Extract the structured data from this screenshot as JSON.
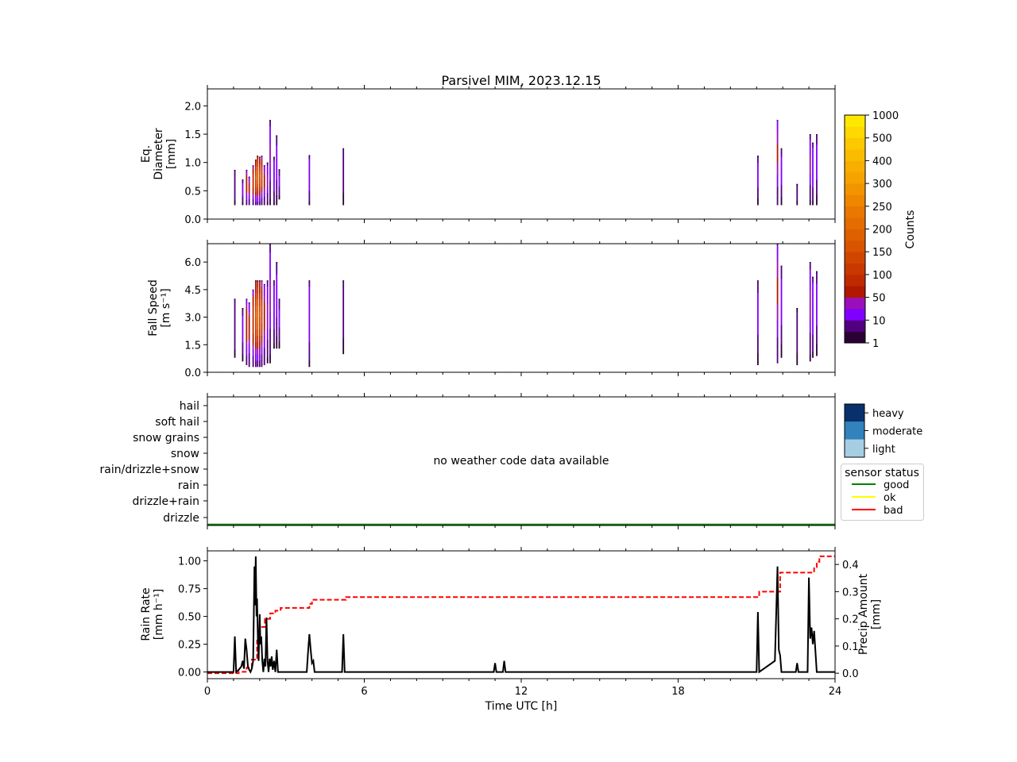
{
  "title": "Parsivel MIM, 2023.12.15",
  "chart_data": [
    {
      "type": "heatmap",
      "id": "diameter",
      "ylabel_lines": [
        "Eq.",
        "Diameter",
        "[mm]"
      ],
      "ylim": [
        0,
        2.3
      ],
      "yticks": [
        "0.0",
        "0.5",
        "1.0",
        "1.5",
        "2.0"
      ],
      "ytick_values": [
        0,
        0.5,
        1.0,
        1.5,
        2.0
      ],
      "xlim": [
        0,
        24
      ],
      "columns": [
        {
          "t": 1.05,
          "lo": 0.25,
          "hi": 0.87,
          "peak": 10
        },
        {
          "t": 1.35,
          "lo": 0.25,
          "hi": 0.7,
          "peak": 20
        },
        {
          "t": 1.5,
          "lo": 0.25,
          "hi": 0.87,
          "peak": 100
        },
        {
          "t": 1.6,
          "lo": 0.25,
          "hi": 0.75,
          "peak": 80
        },
        {
          "t": 1.75,
          "lo": 0.25,
          "hi": 0.95,
          "peak": 150
        },
        {
          "t": 1.85,
          "lo": 0.25,
          "hi": 1.05,
          "peak": 300
        },
        {
          "t": 1.92,
          "lo": 0.25,
          "hi": 1.12,
          "peak": 400
        },
        {
          "t": 2.0,
          "lo": 0.25,
          "hi": 1.1,
          "peak": 300
        },
        {
          "t": 2.08,
          "lo": 0.25,
          "hi": 1.12,
          "peak": 200
        },
        {
          "t": 2.18,
          "lo": 0.25,
          "hi": 0.95,
          "peak": 80
        },
        {
          "t": 2.3,
          "lo": 0.25,
          "hi": 1.0,
          "peak": 40
        },
        {
          "t": 2.4,
          "lo": 0.25,
          "hi": 1.75,
          "peak": 40
        },
        {
          "t": 2.55,
          "lo": 0.25,
          "hi": 1.1,
          "peak": 30
        },
        {
          "t": 2.65,
          "lo": 0.25,
          "hi": 1.48,
          "peak": 20
        },
        {
          "t": 2.75,
          "lo": 0.35,
          "hi": 0.88,
          "peak": 15
        },
        {
          "t": 3.9,
          "lo": 0.25,
          "hi": 1.13,
          "peak": 30
        },
        {
          "t": 5.2,
          "lo": 0.25,
          "hi": 1.25,
          "peak": 8
        },
        {
          "t": 21.05,
          "lo": 0.25,
          "hi": 1.12,
          "peak": 20
        },
        {
          "t": 21.8,
          "lo": 0.25,
          "hi": 1.75,
          "peak": 60
        },
        {
          "t": 21.95,
          "lo": 0.25,
          "hi": 1.25,
          "peak": 20
        },
        {
          "t": 22.55,
          "lo": 0.25,
          "hi": 0.62,
          "peak": 5
        },
        {
          "t": 23.05,
          "lo": 0.25,
          "hi": 1.5,
          "peak": 40
        },
        {
          "t": 23.15,
          "lo": 0.25,
          "hi": 1.35,
          "peak": 30
        },
        {
          "t": 23.3,
          "lo": 0.25,
          "hi": 1.5,
          "peak": 20
        }
      ]
    },
    {
      "type": "heatmap",
      "id": "fallspeed",
      "ylabel_lines": [
        "Fall Speed",
        "[m s⁻¹]"
      ],
      "ylim": [
        0,
        7.0
      ],
      "yticks": [
        "0.0",
        "1.5",
        "3.0",
        "4.5",
        "6.0"
      ],
      "ytick_values": [
        0,
        1.5,
        3.0,
        4.5,
        6.0
      ],
      "xlim": [
        0,
        24
      ],
      "columns": [
        {
          "t": 1.05,
          "lo": 0.8,
          "hi": 4.0,
          "peak": 10
        },
        {
          "t": 1.35,
          "lo": 0.6,
          "hi": 3.5,
          "peak": 20
        },
        {
          "t": 1.5,
          "lo": 0.4,
          "hi": 4.0,
          "peak": 100
        },
        {
          "t": 1.6,
          "lo": 0.3,
          "hi": 3.8,
          "peak": 80
        },
        {
          "t": 1.75,
          "lo": 0.3,
          "hi": 4.5,
          "peak": 150
        },
        {
          "t": 1.85,
          "lo": 0.3,
          "hi": 5.0,
          "peak": 300
        },
        {
          "t": 1.92,
          "lo": 0.3,
          "hi": 5.0,
          "peak": 400
        },
        {
          "t": 2.0,
          "lo": 0.3,
          "hi": 5.0,
          "peak": 300
        },
        {
          "t": 2.08,
          "lo": 0.3,
          "hi": 5.0,
          "peak": 200
        },
        {
          "t": 2.18,
          "lo": 0.4,
          "hi": 4.8,
          "peak": 80
        },
        {
          "t": 2.3,
          "lo": 0.5,
          "hi": 5.0,
          "peak": 40
        },
        {
          "t": 2.4,
          "lo": 0.5,
          "hi": 7.0,
          "peak": 40
        },
        {
          "t": 2.55,
          "lo": 1.3,
          "hi": 5.0,
          "peak": 30
        },
        {
          "t": 2.65,
          "lo": 1.3,
          "hi": 6.0,
          "peak": 20
        },
        {
          "t": 2.75,
          "lo": 1.3,
          "hi": 4.0,
          "peak": 15
        },
        {
          "t": 3.9,
          "lo": 0.3,
          "hi": 5.0,
          "peak": 30
        },
        {
          "t": 5.2,
          "lo": 1.0,
          "hi": 5.0,
          "peak": 8
        },
        {
          "t": 21.05,
          "lo": 0.4,
          "hi": 5.0,
          "peak": 20
        },
        {
          "t": 21.8,
          "lo": 0.5,
          "hi": 7.0,
          "peak": 60
        },
        {
          "t": 21.95,
          "lo": 0.8,
          "hi": 5.8,
          "peak": 20
        },
        {
          "t": 22.55,
          "lo": 0.4,
          "hi": 3.5,
          "peak": 5
        },
        {
          "t": 23.05,
          "lo": 0.6,
          "hi": 6.0,
          "peak": 40
        },
        {
          "t": 23.15,
          "lo": 0.8,
          "hi": 5.2,
          "peak": 30
        },
        {
          "t": 23.3,
          "lo": 0.9,
          "hi": 5.5,
          "peak": 20
        }
      ]
    },
    {
      "type": "line",
      "id": "weathercode",
      "categories": [
        "hail",
        "soft hail",
        "snow grains",
        "snow",
        "rain/drizzle+snow",
        "rain",
        "drizzle+rain",
        "drizzle"
      ],
      "xlim": [
        0,
        24
      ],
      "annotation": "no weather code data available",
      "status_series": {
        "name": "good",
        "color": "#008000",
        "x": [
          0,
          24
        ]
      }
    },
    {
      "type": "line",
      "id": "rainrate",
      "ylabel_lines": [
        "Rain Rate",
        "[mm h⁻¹]"
      ],
      "y2label_lines": [
        "Precip Amount",
        "[mm]"
      ],
      "ylim": [
        -0.06,
        1.09
      ],
      "y2lim": [
        -0.02,
        0.45
      ],
      "yticks": [
        "0.00",
        "0.25",
        "0.50",
        "0.75",
        "1.00"
      ],
      "ytick_values": [
        0,
        0.25,
        0.5,
        0.75,
        1.0
      ],
      "y2ticks": [
        "0.0",
        "0.1",
        "0.2",
        "0.3",
        "0.4"
      ],
      "y2tick_values": [
        0,
        0.1,
        0.2,
        0.3,
        0.4
      ],
      "xlabel": "Time UTC [h]",
      "xlim": [
        0,
        24
      ],
      "xticks": [
        "0",
        "6",
        "12",
        "18",
        "24"
      ],
      "xtick_values": [
        0,
        6,
        12,
        18,
        24
      ],
      "series": [
        {
          "name": "Rain Rate",
          "color": "#000000",
          "style": "solid",
          "x": [
            0,
            1.0,
            1.05,
            1.1,
            1.2,
            1.3,
            1.35,
            1.4,
            1.45,
            1.5,
            1.55,
            1.6,
            1.65,
            1.7,
            1.75,
            1.8,
            1.82,
            1.85,
            1.88,
            1.9,
            1.93,
            1.96,
            2.0,
            2.03,
            2.06,
            2.1,
            2.14,
            2.18,
            2.22,
            2.26,
            2.3,
            2.34,
            2.38,
            2.42,
            2.46,
            2.5,
            2.55,
            2.6,
            2.65,
            2.7,
            2.75,
            2.8,
            2.85,
            3.8,
            3.85,
            3.9,
            3.95,
            4.0,
            4.05,
            4.1,
            5.15,
            5.2,
            5.25,
            10.95,
            11.0,
            11.05,
            11.3,
            11.35,
            11.4,
            21.0,
            21.05,
            21.1,
            21.7,
            21.8,
            21.85,
            21.9,
            21.95,
            22.0,
            22.5,
            22.55,
            22.6,
            22.95,
            23.0,
            23.05,
            23.1,
            23.15,
            23.2,
            23.3,
            23.35,
            24
          ],
          "y": [
            0,
            0,
            0.32,
            0,
            0.02,
            0.05,
            0.1,
            0.03,
            0.3,
            0.2,
            0.05,
            0.02,
            0,
            0.03,
            0.1,
            0.95,
            0.6,
            1.04,
            0.5,
            0.66,
            0.3,
            0.1,
            0.52,
            0.25,
            0.32,
            0.1,
            0,
            0.12,
            0.05,
            0.49,
            0.1,
            0,
            0.12,
            0.05,
            0.14,
            0.02,
            0.1,
            0,
            0.2,
            0,
            0,
            0,
            0,
            0,
            0.18,
            0.34,
            0.2,
            0.08,
            0.1,
            0,
            0,
            0.34,
            0,
            0,
            0.08,
            0,
            0,
            0.1,
            0,
            0,
            0.54,
            0,
            0.1,
            0.95,
            0.2,
            0.15,
            0,
            0,
            0,
            0.08,
            0,
            0,
            0.85,
            0.3,
            0.4,
            0.25,
            0.37,
            0,
            0,
            0
          ]
        },
        {
          "name": "Precip Amount",
          "color": "#ff0000",
          "style": "dashed",
          "axis": "right",
          "x": [
            0,
            1.0,
            1.2,
            1.5,
            1.7,
            1.9,
            2.0,
            2.2,
            2.4,
            2.6,
            2.8,
            3.0,
            3.8,
            3.9,
            4.0,
            5.2,
            5.3,
            20.9,
            21.1,
            21.8,
            21.9,
            23.1,
            23.2,
            23.3,
            23.4,
            24
          ],
          "y": [
            0,
            0,
            0.005,
            0.02,
            0.05,
            0.12,
            0.17,
            0.2,
            0.22,
            0.23,
            0.24,
            0.24,
            0.24,
            0.255,
            0.27,
            0.27,
            0.28,
            0.28,
            0.3,
            0.3,
            0.37,
            0.37,
            0.39,
            0.41,
            0.43,
            0.43
          ]
        }
      ]
    }
  ],
  "colorbar": {
    "label": "Counts",
    "ticks": [
      "1",
      "10",
      "50",
      "100",
      "150",
      "200",
      "250",
      "300",
      "400",
      "500",
      "1000"
    ],
    "colors": [
      "#2a0035",
      "#510080",
      "#8000ff",
      "#9a10b8",
      "#b01800",
      "#c02a00",
      "#c83800",
      "#d04600",
      "#d85400",
      "#de6000",
      "#e46c00",
      "#e87800",
      "#ee8600",
      "#f29400",
      "#f6a200",
      "#f8ae00",
      "#fabc00",
      "#fcc800",
      "#fed800",
      "#ffe800"
    ]
  },
  "legend_weather": {
    "items": [
      {
        "label": "heavy",
        "color": "#08306b"
      },
      {
        "label": "moderate",
        "color": "#3182bd"
      },
      {
        "label": "light",
        "color": "#a6cee3"
      }
    ]
  },
  "legend_status": {
    "title": "sensor status",
    "items": [
      {
        "label": "good",
        "color": "#008000"
      },
      {
        "label": "ok",
        "color": "#ffff00"
      },
      {
        "label": "bad",
        "color": "#ff0000"
      }
    ]
  }
}
